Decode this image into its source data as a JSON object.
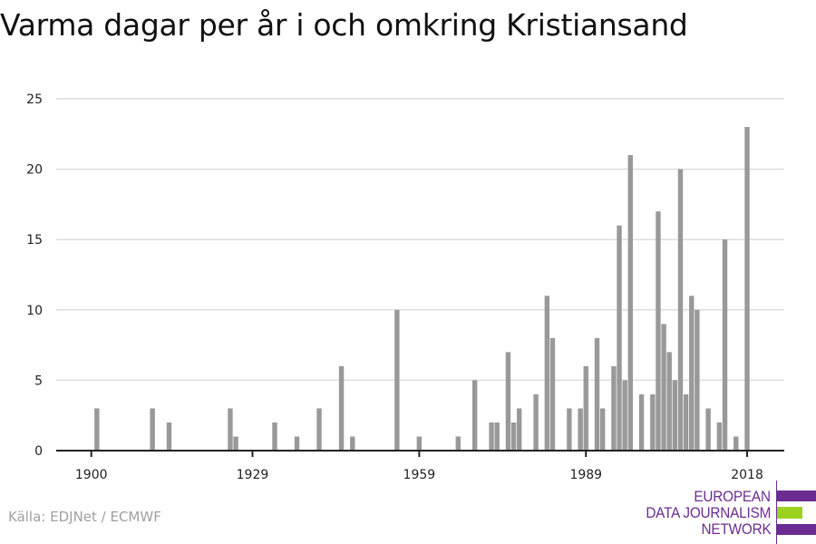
{
  "chart_data": {
    "type": "bar",
    "title": "Varma dagar per år i och omkring Kristiansand",
    "xlabel": "",
    "ylabel": "",
    "ylim": [
      0,
      25
    ],
    "xlim": [
      1894,
      2025
    ],
    "yticks": [
      0,
      5,
      10,
      15,
      20,
      25
    ],
    "xticks": [
      1900,
      1929,
      1959,
      1989,
      2018
    ],
    "grid": true,
    "bar_color": "#999999",
    "years": [
      1901,
      1911,
      1914,
      1925,
      1926,
      1933,
      1937,
      1941,
      1945,
      1947,
      1955,
      1959,
      1966,
      1969,
      1972,
      1973,
      1975,
      1976,
      1977,
      1980,
      1982,
      1983,
      1986,
      1988,
      1989,
      1991,
      1992,
      1994,
      1995,
      1996,
      1997,
      1999,
      2001,
      2002,
      2003,
      2004,
      2005,
      2006,
      2007,
      2008,
      2009,
      2011,
      2013,
      2014,
      2016,
      2018
    ],
    "values": [
      3,
      3,
      2,
      3,
      1,
      2,
      1,
      3,
      6,
      1,
      10,
      1,
      1,
      5,
      2,
      2,
      7,
      2,
      3,
      4,
      11,
      8,
      3,
      3,
      6,
      8,
      3,
      6,
      16,
      5,
      21,
      4,
      4,
      17,
      9,
      7,
      5,
      20,
      4,
      11,
      10,
      3,
      2,
      15,
      1,
      23
    ]
  },
  "source": "Källa: EDJNet / ECMWF",
  "logo": {
    "lines": [
      "EUROPEAN",
      "DATA JOURNALISM",
      "NETWORK"
    ],
    "purple": "#6b2c91",
    "green": "#9bd21f"
  }
}
